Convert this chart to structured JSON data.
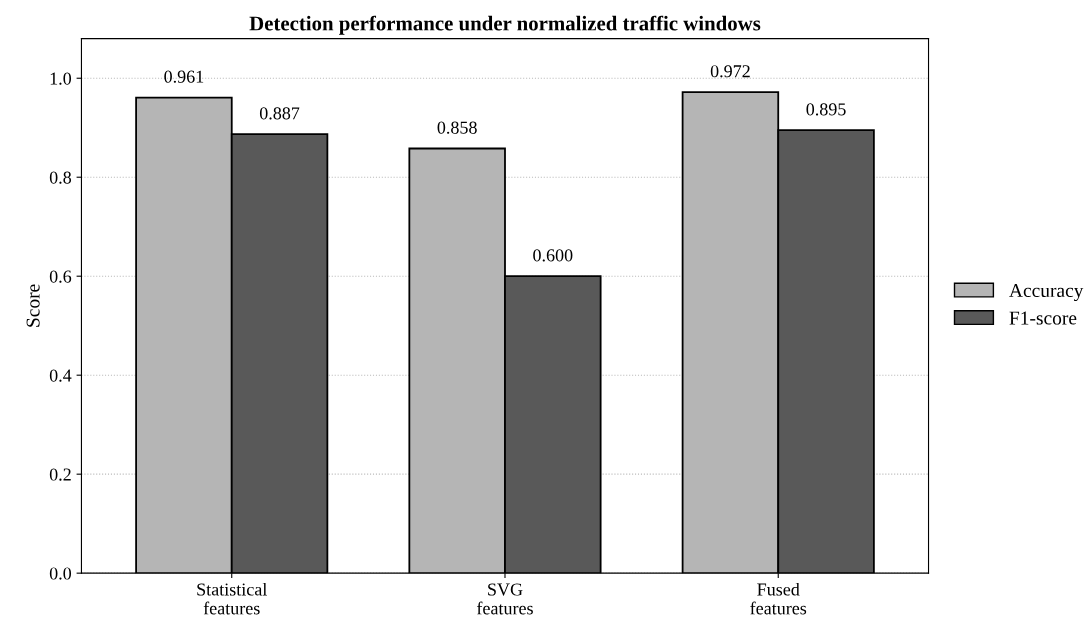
{
  "chart_data": {
    "type": "bar",
    "title": "Detection performance under normalized traffic windows",
    "ylabel": "Score",
    "categories": [
      "Statistical\nfeatures",
      "SVG\nfeatures",
      "Fused\nfeatures"
    ],
    "series": [
      {
        "name": "Accuracy",
        "color": "#b5b5b5",
        "values": [
          0.961,
          0.858,
          0.972
        ],
        "value_labels": [
          "0.961",
          "0.858",
          "0.972"
        ]
      },
      {
        "name": "F1-score",
        "color": "#595959",
        "values": [
          0.887,
          0.6,
          0.895
        ],
        "value_labels": [
          "0.887",
          "0.600",
          "0.895"
        ]
      }
    ],
    "ylim": [
      0,
      1.08
    ],
    "yticks": [
      "0.0",
      "0.2",
      "0.4",
      "0.6",
      "0.8",
      "1.0"
    ],
    "grid": "y",
    "legend": "right"
  }
}
